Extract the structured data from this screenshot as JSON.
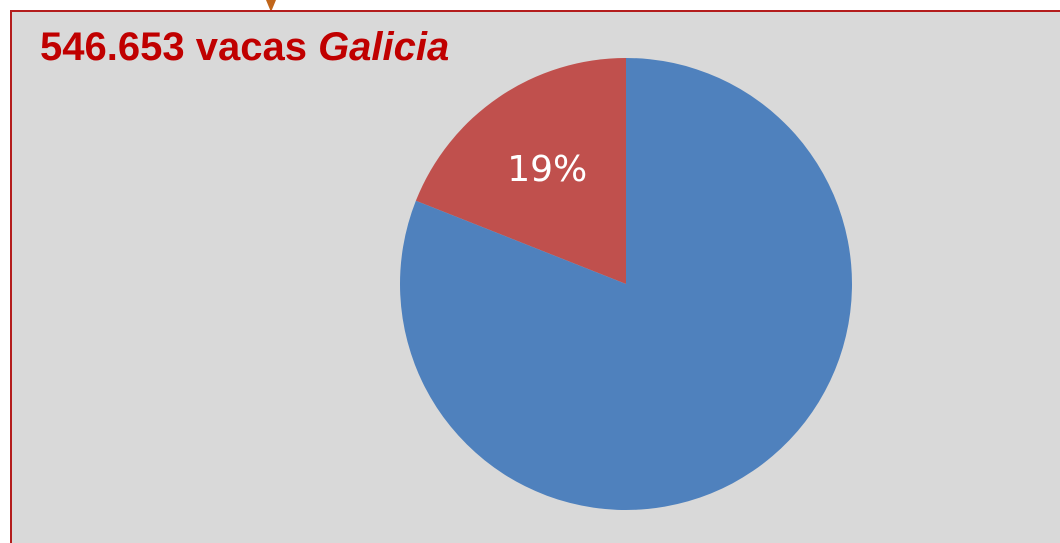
{
  "title": {
    "count": "546.653 vacas",
    "region": "Galicia"
  },
  "colors": {
    "frame_border": "#b41d1d",
    "background": "#d9d9d9",
    "title": "#c00000",
    "pointer": "#c0651a"
  },
  "chart_data": {
    "type": "pie",
    "title": "546.653 vacas Galicia",
    "slices": [
      {
        "value": 19,
        "label": "19%",
        "color": "#c0504d"
      },
      {
        "value": 81,
        "label": "",
        "color": "#4f81bd"
      }
    ],
    "start": "12 o'clock",
    "direction": "counter-clockwise for first slice",
    "legend": "none"
  }
}
